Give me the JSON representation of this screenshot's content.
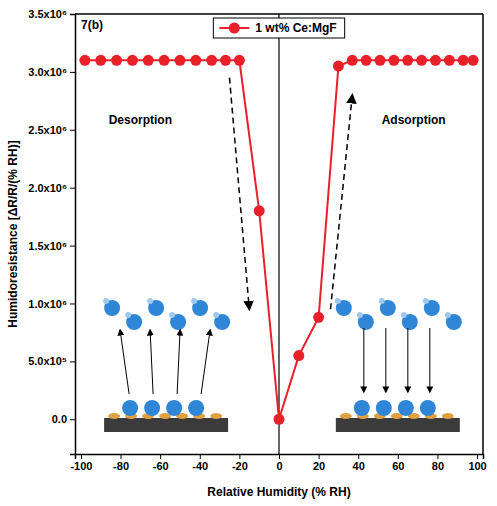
{
  "chart_data": {
    "type": "line",
    "title": "7(b)",
    "x_label": "Relative Humidity (% RH)",
    "y_label": "Humidoresistance [ΔR/R/(% RH)]",
    "x": [
      -98,
      -90,
      -82,
      -74,
      -66,
      -58,
      -50,
      -42,
      -34,
      -27,
      -20,
      -10,
      0,
      10,
      20,
      30,
      37,
      44,
      51,
      58,
      65,
      72,
      79,
      86,
      93,
      98
    ],
    "series": [
      {
        "name": "1 wt% Ce:MgF",
        "color": "#e8202a",
        "marker": "circle",
        "line_style": "solid",
        "values": [
          3100000,
          3100000,
          3100000,
          3100000,
          3100000,
          3100000,
          3100000,
          3100000,
          3100000,
          3100000,
          3100000,
          1800000,
          0,
          550000,
          880000,
          3050000,
          3100000,
          3100000,
          3100000,
          3100000,
          3100000,
          3100000,
          3100000,
          3100000,
          3100000,
          3100000
        ]
      }
    ],
    "xlim": [
      -103,
      103
    ],
    "xticks": [
      -100,
      -80,
      -60,
      -40,
      -20,
      0,
      20,
      40,
      60,
      80,
      100
    ],
    "ylim": [
      -300000,
      3500000
    ],
    "yticks": [
      {
        "value": 0,
        "label": "0.0"
      },
      {
        "value": 500000,
        "label": "5.0x10⁵"
      },
      {
        "value": 1000000,
        "label": "1.0x10⁶"
      },
      {
        "value": 1500000,
        "label": "1.5x10⁶"
      },
      {
        "value": 2000000,
        "label": "2.0x10⁶"
      },
      {
        "value": 2500000,
        "label": "2.5x10⁶"
      },
      {
        "value": 3000000,
        "label": "3.0x10⁶"
      },
      {
        "value": 3500000,
        "label": "3.5x10⁶"
      }
    ],
    "grid": false,
    "legend": "top",
    "annotations": [
      "Desorption",
      "Adsorption"
    ]
  }
}
